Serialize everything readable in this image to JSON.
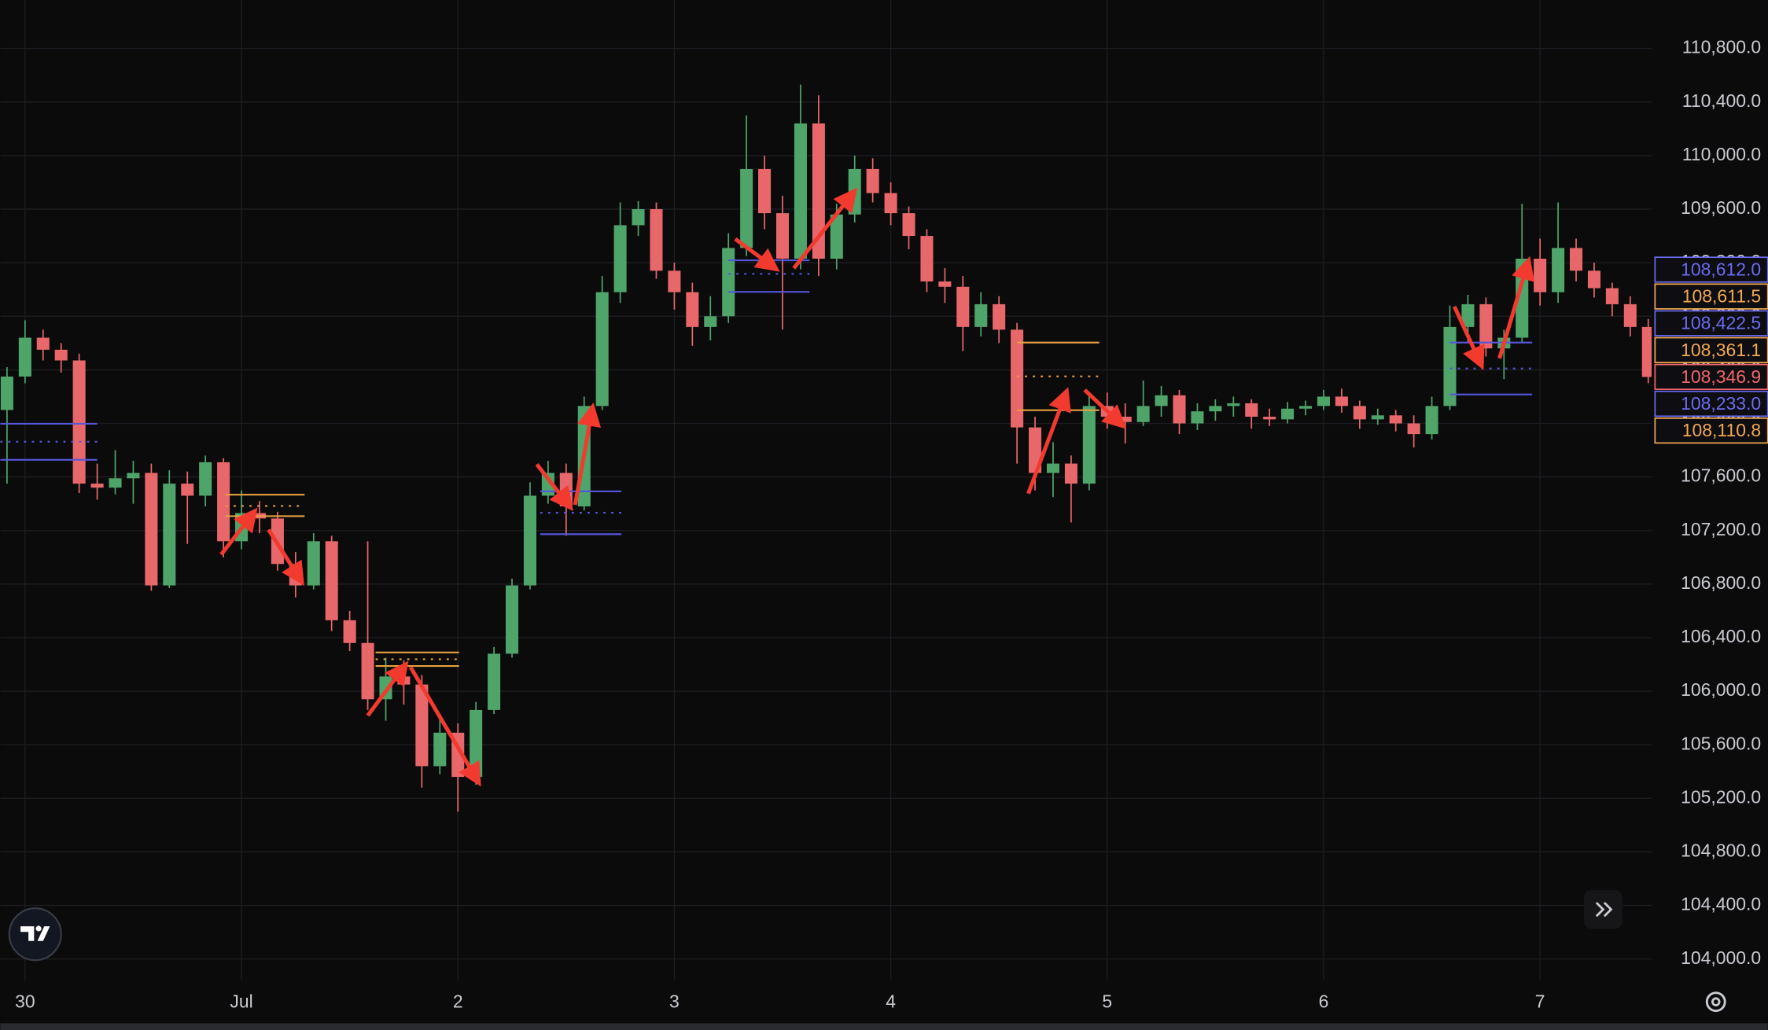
{
  "chart_data": {
    "type": "candlestick",
    "x": [
      -2,
      0,
      2,
      4,
      6,
      8,
      10,
      12,
      14,
      16,
      18,
      20,
      22,
      24,
      26,
      28,
      30,
      32,
      34,
      36,
      38,
      40,
      42,
      44,
      46,
      48,
      50,
      52,
      54,
      56,
      58,
      60,
      62,
      64,
      66,
      68,
      70,
      72,
      74,
      76,
      78,
      80,
      82,
      84,
      86,
      88,
      90,
      92,
      94,
      96,
      98,
      100,
      102,
      104,
      106,
      108,
      110,
      112,
      114,
      116,
      118,
      120,
      122,
      124,
      126,
      128,
      130,
      132,
      134,
      136,
      138,
      140,
      142,
      144,
      146,
      148,
      150,
      152,
      154,
      156,
      158,
      160,
      162,
      164,
      166,
      168,
      170,
      172,
      174,
      176,
      178,
      180
    ],
    "open": [
      108100,
      108350,
      108640,
      108550,
      108470,
      107550,
      107520,
      107590,
      107630,
      106790,
      107550,
      107460,
      107710,
      107120,
      107330,
      107290,
      106950,
      106790,
      107120,
      106530,
      106360,
      105940,
      106110,
      106050,
      105440,
      105690,
      105360,
      105860,
      106280,
      106790,
      107460,
      107630,
      107380,
      108130,
      108980,
      109480,
      109600,
      109140,
      108980,
      108720,
      108800,
      109310,
      109900,
      109570,
      109230,
      110240,
      109230,
      109560,
      109900,
      109720,
      109570,
      109400,
      109060,
      109020,
      108720,
      108890,
      108700,
      107970,
      107630,
      107700,
      107550,
      108130,
      108050,
      108010,
      108130,
      108210,
      108000,
      108090,
      108130,
      108150,
      108050,
      108030,
      108110,
      108130,
      108200,
      108130,
      108030,
      108060,
      108000,
      107920,
      108130,
      108720,
      108890,
      108560,
      108640,
      109230,
      108980,
      109310,
      109140,
      109010,
      108890,
      108720
    ],
    "high": [
      108420,
      108770,
      108700,
      108600,
      108520,
      107700,
      107800,
      107720,
      107700,
      107650,
      107640,
      107760,
      107740,
      107500,
      107420,
      107340,
      107040,
      107180,
      107160,
      106600,
      107120,
      106250,
      106230,
      106120,
      105800,
      105760,
      105920,
      106330,
      106840,
      107560,
      107720,
      107700,
      108200,
      109100,
      109650,
      109660,
      109650,
      109200,
      109050,
      108950,
      109420,
      110300,
      110000,
      109700,
      110530,
      110450,
      109640,
      110000,
      109980,
      109800,
      109620,
      109450,
      109160,
      109100,
      108980,
      108950,
      108750,
      108050,
      107860,
      107760,
      108220,
      108230,
      108150,
      108320,
      108280,
      108250,
      108150,
      108180,
      108200,
      108180,
      108110,
      108160,
      108170,
      108250,
      108260,
      108170,
      108110,
      108100,
      108060,
      108200,
      108880,
      108960,
      108940,
      108700,
      109640,
      109380,
      109650,
      109380,
      109200,
      109050,
      108950,
      108780
    ],
    "low": [
      107550,
      108300,
      108470,
      108380,
      107480,
      107430,
      107470,
      107400,
      106750,
      106770,
      107100,
      107380,
      107000,
      107060,
      107180,
      106900,
      106700,
      106760,
      106450,
      106300,
      105860,
      105780,
      105900,
      105280,
      105380,
      105100,
      105300,
      105830,
      106250,
      106760,
      107400,
      107160,
      107350,
      108100,
      108900,
      109400,
      109080,
      108850,
      108580,
      108620,
      108750,
      109250,
      109450,
      108700,
      109150,
      109100,
      109150,
      109500,
      109650,
      109480,
      109300,
      108980,
      108900,
      108540,
      108650,
      108600,
      107700,
      107500,
      107450,
      107260,
      107500,
      107960,
      107850,
      107980,
      108050,
      107920,
      107950,
      108020,
      108050,
      107960,
      107980,
      108000,
      108060,
      108100,
      108080,
      107960,
      107990,
      107940,
      107820,
      107880,
      108100,
      108600,
      108500,
      108330,
      108600,
      108880,
      108900,
      109060,
      108940,
      108800,
      108650,
      108300
    ],
    "close": [
      108350,
      108640,
      108550,
      108470,
      107550,
      107520,
      107590,
      107630,
      106790,
      107550,
      107460,
      107710,
      107120,
      107330,
      107290,
      106950,
      106790,
      107120,
      106530,
      106360,
      105940,
      106110,
      106050,
      105440,
      105690,
      105360,
      105860,
      106280,
      106790,
      107460,
      107630,
      107380,
      108130,
      108980,
      109480,
      109600,
      109140,
      108980,
      108720,
      108800,
      109310,
      109900,
      109570,
      109230,
      110240,
      109230,
      109560,
      109900,
      109720,
      109570,
      109400,
      109060,
      109020,
      108720,
      108890,
      108700,
      107970,
      107630,
      107700,
      107550,
      108130,
      108050,
      108010,
      108130,
      108210,
      108000,
      108090,
      108130,
      108150,
      108050,
      108030,
      108110,
      108130,
      108200,
      108130,
      108030,
      108060,
      108000,
      107920,
      108130,
      108720,
      108890,
      108560,
      108640,
      109230,
      108980,
      109310,
      109140,
      109010,
      108890,
      108720,
      108346.9
    ],
    "up_color": "#4fa46a",
    "down_color": "#e8676b",
    "xlim": [
      -2.75,
      180.375
    ],
    "xticks": [
      {
        "value": 0,
        "label": "30"
      },
      {
        "value": 24,
        "label": "Jul"
      },
      {
        "value": 48,
        "label": "2"
      },
      {
        "value": 72,
        "label": "3"
      },
      {
        "value": 96,
        "label": "4"
      },
      {
        "value": 120,
        "label": "5"
      },
      {
        "value": 144,
        "label": "6"
      },
      {
        "value": 168,
        "label": "7"
      }
    ],
    "ylim": [
      103840,
      111162
    ],
    "yticks": [
      {
        "value": 104000,
        "label": "104,000.0"
      },
      {
        "value": 104400,
        "label": "104,400.0"
      },
      {
        "value": 104800,
        "label": "104,800.0"
      },
      {
        "value": 105200,
        "label": "105,200.0"
      },
      {
        "value": 105600,
        "label": "105,600.0"
      },
      {
        "value": 106000,
        "label": "106,000.0"
      },
      {
        "value": 106400,
        "label": "106,400.0"
      },
      {
        "value": 106800,
        "label": "106,800.0"
      },
      {
        "value": 107200,
        "label": "107,200.0"
      },
      {
        "value": 107600,
        "label": "107,600.0"
      },
      {
        "value": 108000,
        "label": "108,000.0"
      },
      {
        "value": 108400,
        "label": "108,400.0"
      },
      {
        "value": 108800,
        "label": "108,800.0"
      },
      {
        "value": 109200,
        "label": "109,200.0"
      },
      {
        "value": 109600,
        "label": "109,600.0"
      },
      {
        "value": 110000,
        "label": "110,000.0"
      },
      {
        "value": 110400,
        "label": "110,400.0"
      },
      {
        "value": 110800,
        "label": "110,800.0"
      }
    ],
    "grid": true,
    "price_labels": [
      {
        "value": 108612.0,
        "label": "108,612.0",
        "color": "#6b6bf2"
      },
      {
        "value": 108611.5,
        "label": "108,611.5",
        "color": "#f2a950"
      },
      {
        "value": 108422.5,
        "label": "108,422.5",
        "color": "#6b6bf2"
      },
      {
        "value": 108361.1,
        "label": "108,361.1",
        "color": "#f2a950"
      },
      {
        "value": 108346.9,
        "label": "108,346.9",
        "color": "#f0676a"
      },
      {
        "value": 108233.0,
        "label": "108,233.0",
        "color": "#6b6bf2"
      },
      {
        "value": 108110.8,
        "label": "108,110.8",
        "color": "#f2a950"
      }
    ]
  }
}
